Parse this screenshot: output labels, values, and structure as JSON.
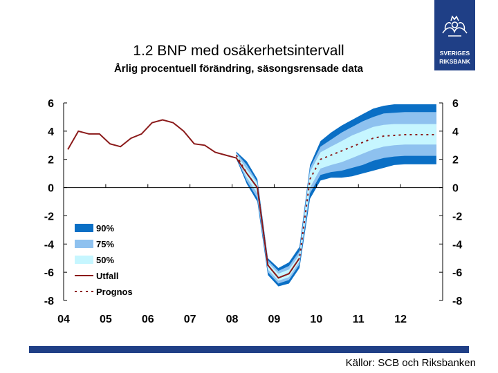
{
  "header": {
    "title": "1.2 BNP med osäkerhetsintervall",
    "subtitle": "Årlig procentuell förändring, säsongsrensade data",
    "logo_text": [
      "SVERIGES",
      "RIKSBANK"
    ]
  },
  "footer": {
    "source": "Källor: SCB och Riksbanken"
  },
  "colors": {
    "brand": "#1f3f86",
    "band90": "#0a6fc5",
    "band75": "#8ec1ef",
    "band50": "#c6f6ff",
    "outcome": "#8b1a1a",
    "forecast": "#8b1a1a"
  },
  "chart_data": {
    "type": "area",
    "title": "1.2 BNP med osäkerhetsintervall",
    "subtitle": "Årlig procentuell förändring, säsongsrensade data",
    "x_tick_labels": [
      "04",
      "05",
      "06",
      "07",
      "08",
      "09",
      "10",
      "11",
      "12"
    ],
    "y_tick_labels_left": [
      "6",
      "4",
      "2",
      "0",
      "-2",
      "-4",
      "-6",
      "-8"
    ],
    "y_tick_labels_right": [
      "6",
      "4",
      "2",
      "0",
      "-2",
      "-4",
      "-6",
      "-8"
    ],
    "ylim": [
      -8,
      6
    ],
    "xlim": [
      2004,
      2013
    ],
    "legend_position": "bottom-left",
    "legend": [
      "90%",
      "75%",
      "50%",
      "Utfall",
      "Prognos"
    ],
    "outcome": {
      "name": "Utfall",
      "x": [
        2004.1,
        2004.35,
        2004.6,
        2004.85,
        2005.1,
        2005.35,
        2005.6,
        2005.85,
        2006.1,
        2006.35,
        2006.6,
        2006.85,
        2007.1,
        2007.35,
        2007.6,
        2007.85,
        2008.1,
        2008.35,
        2008.6,
        2008.85,
        2009.1,
        2009.35,
        2009.6
      ],
      "y": [
        2.7,
        4.0,
        3.8,
        3.8,
        3.1,
        2.9,
        3.5,
        3.8,
        4.6,
        4.8,
        4.6,
        4.0,
        3.1,
        3.0,
        2.5,
        2.3,
        2.1,
        1.0,
        0.0,
        -5.5,
        -6.4,
        -6.1,
        -5.0
      ]
    },
    "forecast": {
      "name": "Prognos",
      "x": [
        2008.1,
        2008.35,
        2008.6,
        2008.85,
        2009.1,
        2009.35,
        2009.6,
        2009.85,
        2010.1,
        2010.35,
        2010.6,
        2010.85,
        2011.1,
        2011.35,
        2011.6,
        2011.85,
        2012.1,
        2012.35,
        2012.6,
        2012.85
      ],
      "y": [
        2.3,
        1.0,
        0.0,
        -5.5,
        -6.4,
        -6.1,
        -5.0,
        0.6,
        2.0,
        2.3,
        2.6,
        2.9,
        3.2,
        3.5,
        3.65,
        3.7,
        3.75,
        3.75,
        3.75,
        3.75
      ]
    },
    "bands": [
      {
        "name": "90%",
        "x": [
          2008.1,
          2008.35,
          2008.6,
          2008.85,
          2009.1,
          2009.35,
          2009.6,
          2009.85,
          2010.1,
          2010.35,
          2010.6,
          2010.85,
          2011.1,
          2011.35,
          2011.6,
          2011.85,
          2012.1,
          2012.35,
          2012.6,
          2012.85
        ],
        "lower": [
          2.05,
          0.25,
          -1.0,
          -6.2,
          -7.0,
          -6.8,
          -5.7,
          -0.8,
          0.5,
          0.7,
          0.7,
          0.8,
          1.0,
          1.2,
          1.4,
          1.6,
          1.65,
          1.65,
          1.65,
          1.65
        ],
        "upper": [
          2.55,
          1.85,
          0.6,
          -5.0,
          -5.7,
          -5.3,
          -4.2,
          1.6,
          3.3,
          3.9,
          4.4,
          4.8,
          5.2,
          5.6,
          5.8,
          5.9,
          5.9,
          5.9,
          5.9,
          5.9
        ]
      },
      {
        "name": "75%",
        "x": [
          2008.1,
          2008.35,
          2008.6,
          2008.85,
          2009.1,
          2009.35,
          2009.6,
          2009.85,
          2010.1,
          2010.35,
          2010.6,
          2010.85,
          2011.1,
          2011.35,
          2011.6,
          2011.85,
          2012.1,
          2012.35,
          2012.6,
          2012.85
        ],
        "lower": [
          2.12,
          0.45,
          -0.75,
          -6.0,
          -6.8,
          -6.55,
          -5.45,
          -0.4,
          0.9,
          1.1,
          1.2,
          1.4,
          1.6,
          1.9,
          2.1,
          2.2,
          2.25,
          2.25,
          2.25,
          2.25
        ],
        "upper": [
          2.48,
          1.6,
          0.4,
          -5.15,
          -5.9,
          -5.55,
          -4.5,
          1.4,
          2.9,
          3.4,
          3.9,
          4.3,
          4.7,
          5.0,
          5.25,
          5.3,
          5.35,
          5.35,
          5.35,
          5.35
        ]
      },
      {
        "name": "50%",
        "x": [
          2008.1,
          2008.35,
          2008.6,
          2008.85,
          2009.1,
          2009.35,
          2009.6,
          2009.85,
          2010.1,
          2010.35,
          2010.6,
          2010.85,
          2011.1,
          2011.35,
          2011.6,
          2011.85,
          2012.1,
          2012.35,
          2012.6,
          2012.85
        ],
        "lower": [
          2.2,
          0.7,
          -0.4,
          -5.8,
          -6.6,
          -6.35,
          -5.25,
          0.0,
          1.35,
          1.6,
          1.8,
          2.1,
          2.4,
          2.7,
          2.9,
          3.0,
          3.05,
          3.05,
          3.05,
          3.05
        ],
        "upper": [
          2.4,
          1.3,
          0.3,
          -5.3,
          -6.1,
          -5.8,
          -4.75,
          1.1,
          2.5,
          2.9,
          3.3,
          3.7,
          4.0,
          4.3,
          4.45,
          4.5,
          4.5,
          4.5,
          4.5,
          4.5
        ]
      }
    ],
    "grid": false
  }
}
